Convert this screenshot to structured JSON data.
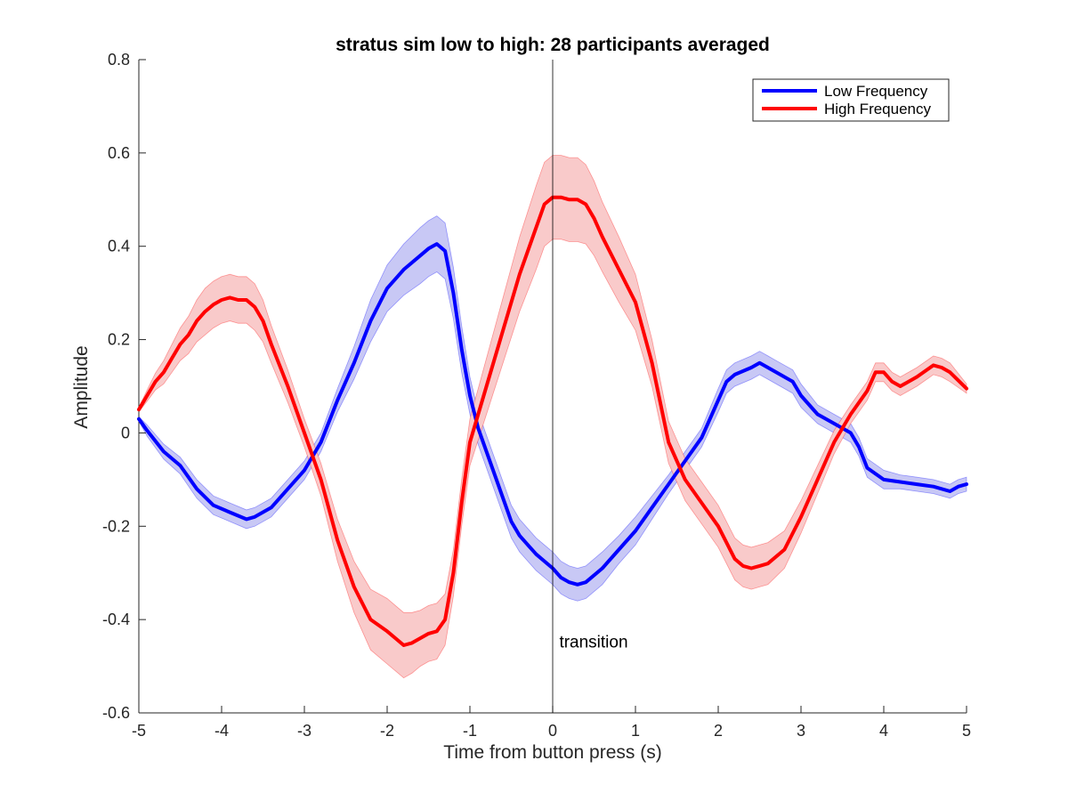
{
  "chart_data": {
    "type": "line",
    "title": "stratus sim low to high: 28 participants averaged",
    "xlabel": "Time from button press (s)",
    "ylabel": "Amplitude",
    "xlim": [
      -5,
      5
    ],
    "ylim": [
      -0.6,
      0.8
    ],
    "xticks": [
      -5,
      -4,
      -3,
      -2,
      -1,
      0,
      1,
      2,
      3,
      4,
      5
    ],
    "yticks": [
      -0.6,
      -0.4,
      -0.2,
      0,
      0.2,
      0.4,
      0.6,
      0.8
    ],
    "ytick_labels": [
      "-0.6",
      "-0.4",
      "-0.2",
      "0",
      "0.2",
      "0.4",
      "0.6",
      "0.8"
    ],
    "grid": false,
    "legend_position": "top-right",
    "shaded_error_band": true,
    "annotations": [
      {
        "text": "transition",
        "x": 0.08,
        "y": -0.46
      }
    ],
    "reference_line": {
      "x": 0
    },
    "series": [
      {
        "name": "Low Frequency",
        "color": "#0000ff",
        "band_color": "#c8c8f5",
        "x": [
          -5,
          -4.9,
          -4.7,
          -4.5,
          -4.3,
          -4.1,
          -3.9,
          -3.7,
          -3.6,
          -3.4,
          -3.2,
          -3.0,
          -2.8,
          -2.6,
          -2.4,
          -2.2,
          -2.0,
          -1.8,
          -1.6,
          -1.5,
          -1.4,
          -1.3,
          -1.2,
          -1.1,
          -1.0,
          -0.9,
          -0.8,
          -0.7,
          -0.6,
          -0.5,
          -0.4,
          -0.3,
          -0.2,
          -0.1,
          0.0,
          0.1,
          0.2,
          0.3,
          0.4,
          0.6,
          0.8,
          1.0,
          1.2,
          1.4,
          1.6,
          1.8,
          2.0,
          2.1,
          2.2,
          2.4,
          2.5,
          2.6,
          2.7,
          2.9,
          3.0,
          3.2,
          3.4,
          3.6,
          3.7,
          3.8,
          4.0,
          4.2,
          4.4,
          4.6,
          4.8,
          4.9,
          5.0
        ],
        "y": [
          0.03,
          0.005,
          -0.04,
          -0.07,
          -0.12,
          -0.155,
          -0.17,
          -0.185,
          -0.18,
          -0.16,
          -0.12,
          -0.08,
          -0.02,
          0.07,
          0.15,
          0.24,
          0.31,
          0.35,
          0.38,
          0.395,
          0.405,
          0.39,
          0.3,
          0.18,
          0.08,
          0.01,
          -0.04,
          -0.09,
          -0.14,
          -0.19,
          -0.22,
          -0.24,
          -0.26,
          -0.275,
          -0.29,
          -0.31,
          -0.32,
          -0.325,
          -0.32,
          -0.29,
          -0.25,
          -0.21,
          -0.16,
          -0.11,
          -0.06,
          -0.01,
          0.07,
          0.11,
          0.125,
          0.14,
          0.15,
          0.14,
          0.13,
          0.11,
          0.08,
          0.04,
          0.02,
          0.0,
          -0.03,
          -0.075,
          -0.1,
          -0.105,
          -0.11,
          -0.115,
          -0.125,
          -0.115,
          -0.11
        ],
        "err": [
          0.005,
          0.012,
          0.016,
          0.018,
          0.02,
          0.02,
          0.02,
          0.02,
          0.02,
          0.02,
          0.02,
          0.02,
          0.02,
          0.025,
          0.035,
          0.045,
          0.05,
          0.055,
          0.06,
          0.06,
          0.06,
          0.06,
          0.055,
          0.05,
          0.04,
          0.035,
          0.035,
          0.035,
          0.035,
          0.035,
          0.035,
          0.035,
          0.035,
          0.035,
          0.035,
          0.035,
          0.035,
          0.035,
          0.035,
          0.035,
          0.03,
          0.03,
          0.025,
          0.02,
          0.02,
          0.02,
          0.025,
          0.025,
          0.025,
          0.025,
          0.025,
          0.025,
          0.025,
          0.025,
          0.025,
          0.02,
          0.02,
          0.02,
          0.02,
          0.02,
          0.02,
          0.015,
          0.015,
          0.015,
          0.015,
          0.015,
          0.015
        ]
      },
      {
        "name": "High Frequency",
        "color": "#ff0000",
        "band_color": "#f9caca",
        "x": [
          -5,
          -4.9,
          -4.8,
          -4.7,
          -4.6,
          -4.5,
          -4.4,
          -4.3,
          -4.2,
          -4.1,
          -4.0,
          -3.9,
          -3.8,
          -3.7,
          -3.6,
          -3.5,
          -3.4,
          -3.2,
          -3.0,
          -2.8,
          -2.6,
          -2.4,
          -2.2,
          -2.0,
          -1.9,
          -1.8,
          -1.7,
          -1.6,
          -1.5,
          -1.4,
          -1.3,
          -1.2,
          -1.1,
          -1.0,
          -0.8,
          -0.6,
          -0.4,
          -0.2,
          -0.1,
          0.0,
          0.1,
          0.2,
          0.3,
          0.4,
          0.5,
          0.6,
          0.8,
          1.0,
          1.2,
          1.4,
          1.6,
          1.8,
          2.0,
          2.2,
          2.3,
          2.4,
          2.5,
          2.6,
          2.8,
          3.0,
          3.2,
          3.4,
          3.6,
          3.8,
          3.9,
          4.0,
          4.1,
          4.2,
          4.4,
          4.6,
          4.7,
          4.8,
          5.0
        ],
        "y": [
          0.05,
          0.08,
          0.11,
          0.13,
          0.16,
          0.19,
          0.21,
          0.24,
          0.26,
          0.275,
          0.285,
          0.29,
          0.285,
          0.285,
          0.27,
          0.24,
          0.19,
          0.1,
          0.0,
          -0.1,
          -0.23,
          -0.33,
          -0.4,
          -0.425,
          -0.44,
          -0.455,
          -0.45,
          -0.44,
          -0.43,
          -0.425,
          -0.4,
          -0.3,
          -0.15,
          -0.02,
          0.1,
          0.22,
          0.34,
          0.44,
          0.49,
          0.505,
          0.505,
          0.5,
          0.5,
          0.49,
          0.46,
          0.42,
          0.35,
          0.28,
          0.15,
          -0.02,
          -0.1,
          -0.15,
          -0.2,
          -0.27,
          -0.285,
          -0.29,
          -0.285,
          -0.28,
          -0.25,
          -0.18,
          -0.1,
          -0.02,
          0.04,
          0.09,
          0.13,
          0.13,
          0.11,
          0.1,
          0.12,
          0.145,
          0.14,
          0.13,
          0.095
        ],
        "err": [
          0.005,
          0.012,
          0.018,
          0.025,
          0.03,
          0.035,
          0.04,
          0.045,
          0.05,
          0.05,
          0.05,
          0.05,
          0.05,
          0.05,
          0.05,
          0.045,
          0.04,
          0.035,
          0.03,
          0.035,
          0.045,
          0.055,
          0.065,
          0.07,
          0.07,
          0.07,
          0.065,
          0.06,
          0.06,
          0.06,
          0.055,
          0.05,
          0.05,
          0.05,
          0.06,
          0.07,
          0.08,
          0.09,
          0.09,
          0.09,
          0.09,
          0.09,
          0.09,
          0.085,
          0.08,
          0.075,
          0.07,
          0.06,
          0.05,
          0.045,
          0.045,
          0.045,
          0.045,
          0.045,
          0.045,
          0.045,
          0.045,
          0.045,
          0.04,
          0.035,
          0.03,
          0.025,
          0.02,
          0.02,
          0.02,
          0.02,
          0.02,
          0.02,
          0.02,
          0.02,
          0.02,
          0.02,
          0.01
        ]
      }
    ]
  }
}
